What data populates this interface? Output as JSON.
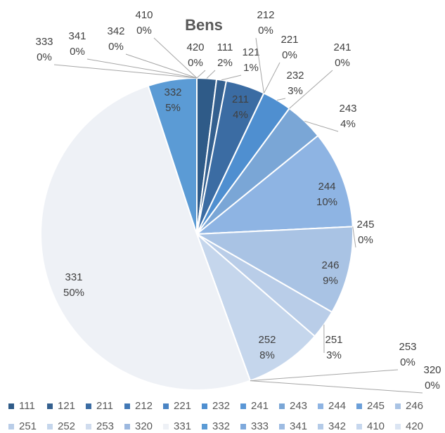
{
  "chart_data": {
    "type": "pie",
    "title": "Bens",
    "categories": [
      "111",
      "121",
      "211",
      "212",
      "221",
      "232",
      "241",
      "243",
      "244",
      "245",
      "246",
      "251",
      "252",
      "253",
      "320",
      "331",
      "332",
      "333",
      "341",
      "342",
      "410",
      "420"
    ],
    "values": [
      2,
      1,
      4,
      0,
      0,
      3,
      0,
      4,
      10,
      0,
      9,
      3,
      8,
      0,
      0,
      50,
      5,
      0,
      0,
      0,
      0,
      0
    ],
    "value_labels": [
      "2%",
      "1%",
      "4%",
      "0%",
      "0%",
      "3%",
      "0%",
      "4%",
      "10%",
      "0%",
      "9%",
      "3%",
      "8%",
      "0%",
      "0%",
      "50%",
      "5%",
      "0%",
      "0%",
      "0%",
      "0%",
      "0%"
    ],
    "colors": [
      "#2f5b88",
      "#34608f",
      "#3b6ca3",
      "#4178b5",
      "#4a84c4",
      "#4f8fd0",
      "#5a97d6",
      "#7aa6d6",
      "#8eb4e3",
      "#6b9fd9",
      "#a9c3e4",
      "#b9cde8",
      "#c5d6ec",
      "#d0dcee",
      "#9cb8df",
      "#eef1f6",
      "#5b9bd5",
      "#7ea9dc",
      "#9dbbe2",
      "#b4cbe8",
      "#c6d7ee",
      "#dbe5f3"
    ],
    "legend": "bottom"
  }
}
